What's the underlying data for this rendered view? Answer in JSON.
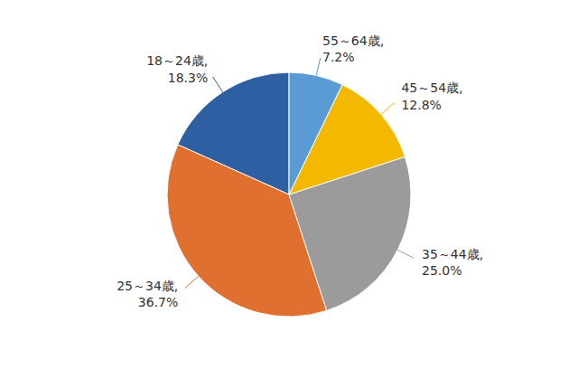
{
  "chart_data": {
    "type": "pie",
    "categories": [
      "18～24歳,",
      "25～34歳,",
      "35～44歳,",
      "45～54歳,",
      "55～64歳,"
    ],
    "values": [
      18.3,
      36.7,
      25.0,
      12.8,
      7.2
    ],
    "value_labels": [
      "18.3%",
      "36.7%",
      "25.0%",
      "12.8%",
      "7.2%"
    ],
    "colors": [
      "#2E5FA3",
      "#E07030",
      "#9B9B9B",
      "#F5B800",
      "#5B9BD5"
    ],
    "data_labels": true
  }
}
